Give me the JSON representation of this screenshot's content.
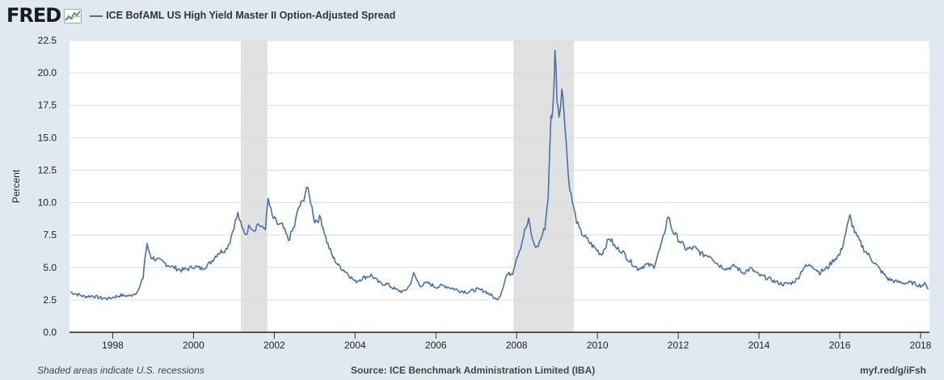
{
  "header": {
    "logo_text": "FRED",
    "series_label": "ICE BofAML US High Yield Master II Option-Adjusted Spread"
  },
  "footer": {
    "note": "Shaded areas indicate U.S. recessions",
    "source": "Source: ICE Benchmark Administration Limited (IBA)",
    "link": "myf.red/g/iFsh"
  },
  "colors": {
    "background": "#e1e9f0",
    "plot_area": "#ffffff",
    "line": "#4572a7",
    "recession": "#e1e1e1",
    "gridline": "#d8dde3"
  },
  "chart_data": {
    "type": "line",
    "title": "",
    "xlabel": "",
    "ylabel": "Percent",
    "xlim": [
      1996.93,
      2018.22
    ],
    "ylim": [
      0,
      22.5
    ],
    "yticks": [
      0.0,
      2.5,
      5.0,
      7.5,
      10.0,
      12.5,
      15.0,
      17.5,
      20.0,
      22.5
    ],
    "ytick_labels": [
      "0.0",
      "2.5",
      "5.0",
      "7.5",
      "10.0",
      "12.5",
      "15.0",
      "17.5",
      "20.0",
      "22.5"
    ],
    "xticks": [
      1998,
      2000,
      2002,
      2004,
      2006,
      2008,
      2010,
      2012,
      2014,
      2016,
      2018
    ],
    "xtick_labels": [
      "1998",
      "2000",
      "2002",
      "2004",
      "2006",
      "2008",
      "2010",
      "2012",
      "2014",
      "2016",
      "2018"
    ],
    "grid": "horizontal",
    "recessions": [
      [
        2001.17,
        2001.83
      ],
      [
        2007.92,
        2009.42
      ]
    ],
    "series": [
      {
        "name": "ICE BofAML US High Yield Master II Option-Adjusted Spread",
        "x": [
          1996.95,
          1997.1,
          1997.3,
          1997.5,
          1997.7,
          1997.9,
          1998.0,
          1998.2,
          1998.4,
          1998.55,
          1998.65,
          1998.75,
          1998.8,
          1998.85,
          1998.95,
          1999.1,
          1999.3,
          1999.5,
          1999.7,
          1999.9,
          2000.0,
          2000.2,
          2000.4,
          2000.6,
          2000.8,
          2000.9,
          2001.0,
          2001.1,
          2001.2,
          2001.3,
          2001.4,
          2001.5,
          2001.6,
          2001.7,
          2001.78,
          2001.85,
          2001.95,
          2002.1,
          2002.2,
          2002.35,
          2002.5,
          2002.6,
          2002.7,
          2002.8,
          2002.9,
          2003.0,
          2003.15,
          2003.3,
          2003.45,
          2003.6,
          2003.8,
          2004.0,
          2004.2,
          2004.4,
          2004.6,
          2004.8,
          2005.0,
          2005.2,
          2005.35,
          2005.45,
          2005.6,
          2005.8,
          2006.0,
          2006.2,
          2006.4,
          2006.6,
          2006.8,
          2007.0,
          2007.2,
          2007.4,
          2007.5,
          2007.6,
          2007.75,
          2007.9,
          2008.0,
          2008.1,
          2008.2,
          2008.3,
          2008.4,
          2008.5,
          2008.6,
          2008.7,
          2008.78,
          2008.85,
          2008.9,
          2008.95,
          2009.0,
          2009.05,
          2009.12,
          2009.2,
          2009.28,
          2009.35,
          2009.45,
          2009.55,
          2009.7,
          2009.9,
          2010.1,
          2010.3,
          2010.45,
          2010.6,
          2010.8,
          2011.0,
          2011.2,
          2011.4,
          2011.6,
          2011.75,
          2011.85,
          2012.0,
          2012.2,
          2012.4,
          2012.6,
          2012.8,
          2013.0,
          2013.2,
          2013.4,
          2013.6,
          2013.8,
          2014.0,
          2014.2,
          2014.4,
          2014.6,
          2014.8,
          2014.95,
          2015.1,
          2015.3,
          2015.5,
          2015.7,
          2015.85,
          2016.0,
          2016.08,
          2016.15,
          2016.25,
          2016.4,
          2016.6,
          2016.8,
          2017.0,
          2017.2,
          2017.4,
          2017.6,
          2017.8,
          2018.0,
          2018.1,
          2018.2
        ],
        "values": [
          3.1,
          2.95,
          2.75,
          2.8,
          2.65,
          2.6,
          2.7,
          2.85,
          2.8,
          3.0,
          3.3,
          4.2,
          5.8,
          6.7,
          5.8,
          5.6,
          5.3,
          5.0,
          4.8,
          4.9,
          5.1,
          4.9,
          5.3,
          6.1,
          6.4,
          7.0,
          8.2,
          9.1,
          8.0,
          7.6,
          8.3,
          7.9,
          8.4,
          8.0,
          8.1,
          10.2,
          8.9,
          8.3,
          8.2,
          7.1,
          8.2,
          9.6,
          10.0,
          11.2,
          10.1,
          8.6,
          8.8,
          7.0,
          5.8,
          5.1,
          4.6,
          3.9,
          4.2,
          4.4,
          3.8,
          3.7,
          3.3,
          3.1,
          3.6,
          4.5,
          3.6,
          3.8,
          3.5,
          3.6,
          3.4,
          3.2,
          3.1,
          3.3,
          3.2,
          2.8,
          2.5,
          2.9,
          4.4,
          4.6,
          5.8,
          6.6,
          7.8,
          8.6,
          7.0,
          6.5,
          7.2,
          8.1,
          10.5,
          16.5,
          17.2,
          21.8,
          18.2,
          16.8,
          18.8,
          16.1,
          12.0,
          10.5,
          9.0,
          7.9,
          7.3,
          6.6,
          6.0,
          7.3,
          6.5,
          6.3,
          5.5,
          4.9,
          5.2,
          5.1,
          6.9,
          9.0,
          7.9,
          7.2,
          6.4,
          6.5,
          6.0,
          5.9,
          5.2,
          4.9,
          5.1,
          4.6,
          4.9,
          4.4,
          4.2,
          3.9,
          3.7,
          3.8,
          4.1,
          5.0,
          5.2,
          4.6,
          5.0,
          5.6,
          6.0,
          6.8,
          7.7,
          8.9,
          7.5,
          6.4,
          5.6,
          4.8,
          4.1,
          3.9,
          3.8,
          3.8,
          3.6,
          3.7,
          3.4
        ]
      }
    ]
  }
}
